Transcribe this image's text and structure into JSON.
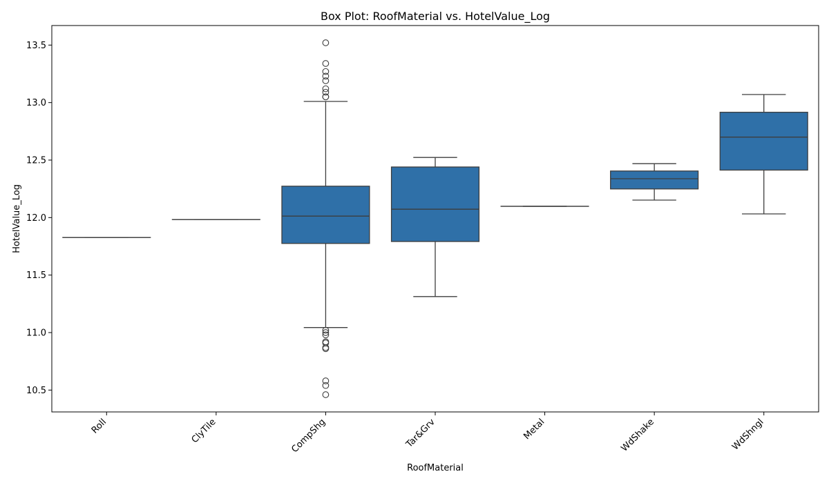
{
  "chart_data": {
    "type": "box",
    "title": "Box Plot: RoofMaterial vs. HotelValue_Log",
    "xlabel": "RoofMaterial",
    "ylabel": "HotelValue_Log",
    "ylim": [
      10.31,
      13.67
    ],
    "yticks": [
      10.5,
      11.0,
      11.5,
      12.0,
      12.5,
      13.0,
      13.5
    ],
    "grid": false,
    "box_color": "#2f70a8",
    "line_color": "#3d3d3d",
    "categories": [
      "Roll",
      "ClyTile",
      "CompShg",
      "Tar&Grv",
      "Metal",
      "WdShake",
      "WdShngl"
    ],
    "boxes": [
      {
        "category": "Roll",
        "whisker_low": 11.827,
        "q1": 11.827,
        "median": 11.827,
        "q3": 11.827,
        "whisker_high": 11.827,
        "outliers": []
      },
      {
        "category": "ClyTile",
        "whisker_low": 11.983,
        "q1": 11.983,
        "median": 11.983,
        "q3": 11.983,
        "whisker_high": 11.983,
        "outliers": []
      },
      {
        "category": "CompShg",
        "whisker_low": 11.044,
        "q1": 11.775,
        "median": 12.013,
        "q3": 12.273,
        "whisker_high": 13.01,
        "outliers": [
          13.52,
          13.34,
          13.27,
          13.23,
          13.19,
          13.12,
          13.09,
          13.05,
          13.05,
          11.02,
          11.0,
          10.98,
          10.92,
          10.91,
          10.87,
          10.86,
          10.58,
          10.54,
          10.46
        ]
      },
      {
        "category": "Tar&Grv",
        "whisker_low": 11.313,
        "q1": 11.792,
        "median": 12.073,
        "q3": 12.44,
        "whisker_high": 12.523,
        "outliers": []
      },
      {
        "category": "Metal",
        "whisker_low": 12.098,
        "q1": 12.098,
        "median": 12.098,
        "q3": 12.098,
        "whisker_high": 12.098,
        "outliers": []
      },
      {
        "category": "WdShake",
        "whisker_low": 12.152,
        "q1": 12.249,
        "median": 12.338,
        "q3": 12.405,
        "whisker_high": 12.469,
        "outliers": []
      },
      {
        "category": "WdShngl",
        "whisker_low": 12.032,
        "q1": 12.413,
        "median": 12.7,
        "q3": 12.916,
        "whisker_high": 13.07,
        "outliers": []
      }
    ]
  }
}
